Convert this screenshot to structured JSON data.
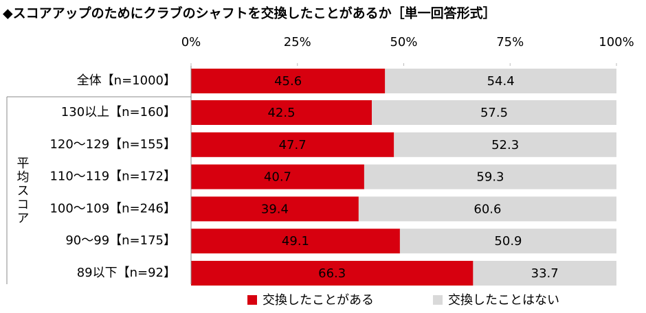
{
  "chart_data": {
    "type": "stacked_bar_horizontal",
    "title": "◆スコアアップのためにクラブのシャフトを交換したことがあるか［単一回答形式］",
    "group_label": "平均スコア",
    "categories": [
      "全体【n=1000】",
      "130以上【n=160】",
      "120～129【n=155】",
      "110～119【n=172】",
      "100～109【n=246】",
      "90～99【n=175】",
      "89以下【n=92】"
    ],
    "series": [
      {
        "name": "交換したことがある",
        "color": "#d7000f",
        "values": [
          45.6,
          42.5,
          47.7,
          40.7,
          39.4,
          49.1,
          66.3
        ]
      },
      {
        "name": "交換したことはない",
        "color": "#d9d9d9",
        "values": [
          54.4,
          57.5,
          52.3,
          59.3,
          60.6,
          50.9,
          33.7
        ]
      }
    ],
    "xlim": [
      0,
      100
    ],
    "xticks": [
      {
        "value": 0,
        "label": "0%"
      },
      {
        "value": 25,
        "label": "25%"
      },
      {
        "value": 50,
        "label": "50%"
      },
      {
        "value": 75,
        "label": "75%"
      },
      {
        "value": 100,
        "label": "100%"
      }
    ],
    "legend": "bottom"
  }
}
